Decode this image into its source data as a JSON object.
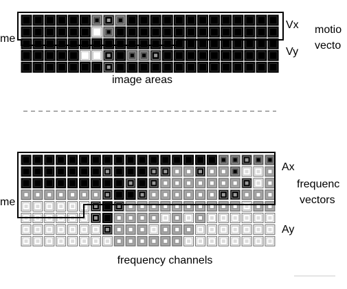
{
  "labels": {
    "time_top": "me",
    "vx": "Vx",
    "vy": "Vy",
    "motion_1": "motio",
    "motion_2": "vecto",
    "image_areas": "image areas",
    "time_bottom": "me",
    "ax": "Ax",
    "ay": "Ay",
    "freq_1": "frequenc",
    "freq_2": "vectors",
    "frequency_channels": "frequency channels"
  },
  "motion_grid": {
    "columns": 22,
    "rows": 5,
    "cells": [
      "K K K K K K m M m K K K K K K K K K K K K K",
      "K K K K K K W m K K K K K K K K K K K K K K",
      "K K K K K K K K K K K K K K K K K K K K K K",
      "K K K K K W W M K m m M K K K K K K K K K K",
      "K K K K K K K M K K K K K K K K K K K K K K"
    ]
  },
  "frequency_grid": {
    "columns": 22,
    "rows": 8,
    "cells": [
      "K K K K K K K K K K K K K K K K K m m M m m",
      "K K K K K K K M K K K M M s s M s s m w w s",
      "K K K K K K K K K M K M s s s s s s s M w s",
      "s s s s s s s M K K M s s s s s s M M s s s",
      "w w w w w w M K M s s s s s s s s s s w s s",
      "w w w w w w M K s s s s w s w s w w w w w w",
      "w w w w w w w M s s s w s s s w w w w w w w",
      "w w w w w w w w s s s s s s w w w w w w w w"
    ]
  },
  "colors": {
    "dark": "#000000",
    "medium_dark": "#555555",
    "medium": "#9a9a9a",
    "light": "#dcdcdc",
    "white": "#ffffff",
    "outline": "#000000"
  }
}
